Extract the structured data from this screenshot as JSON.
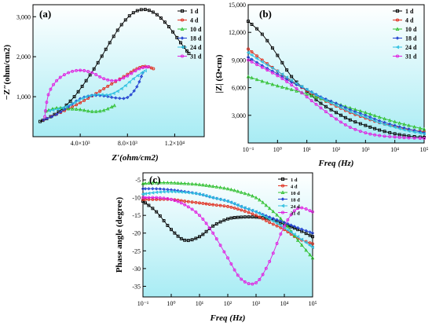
{
  "chart_data": [
    {
      "panel_label": "(a)",
      "type": "line",
      "xlabel": "Z′(ohm/cm2)",
      "ylabel": "−Z″(ohm/cm2)",
      "xlim": [
        0,
        14500
      ],
      "ylim": [
        0,
        3300
      ],
      "xticks": [
        {
          "v": 4000,
          "label": "4.0×10³"
        },
        {
          "v": 8000,
          "label": "8.0×10³"
        },
        {
          "v": 12000,
          "label": "1.2×10⁴"
        }
      ],
      "yticks": [
        {
          "v": 1000,
          "label": "1,000"
        },
        {
          "v": 2000,
          "label": "2,000"
        },
        {
          "v": 3000,
          "label": "3,000"
        }
      ],
      "legend": "top-right",
      "series": [
        {
          "name": "1 d",
          "color": "#000000",
          "marker": "square",
          "x": [
            600,
            1500,
            2500,
            3500,
            4500,
            5500,
            6500,
            7500,
            8500,
            9500,
            10500,
            11500,
            12500,
            13200
          ],
          "y": [
            380,
            500,
            700,
            1000,
            1400,
            1850,
            2350,
            2800,
            3100,
            3180,
            3050,
            2750,
            2350,
            2080
          ]
        },
        {
          "name": "4 d",
          "color": "#e03020",
          "marker": "circle",
          "x": [
            900,
            2000,
            3000,
            4000,
            5000,
            6000,
            7000,
            8000,
            8800,
            9500,
            10200
          ],
          "y": [
            420,
            560,
            700,
            850,
            1020,
            1200,
            1380,
            1560,
            1700,
            1760,
            1700
          ]
        },
        {
          "name": "10 d",
          "color": "#30c030",
          "marker": "triangle",
          "x": [
            1100,
            2000,
            3000,
            4000,
            5000,
            6000,
            6900
          ],
          "y": [
            640,
            720,
            700,
            680,
            630,
            660,
            780
          ]
        },
        {
          "name": "18 d",
          "color": "#2040d0",
          "marker": "diamond",
          "x": [
            900,
            2000,
            3000,
            4000,
            5000,
            6000,
            7000,
            8000,
            8800,
            9300
          ],
          "y": [
            420,
            560,
            750,
            950,
            1030,
            1020,
            970,
            980,
            1250,
            1600
          ]
        },
        {
          "name": "24 d",
          "color": "#30c0e0",
          "marker": "triangle-left",
          "x": [
            1400,
            2500,
            3500,
            4500,
            5500,
            6500,
            7500,
            8500,
            9500
          ],
          "y": [
            650,
            720,
            850,
            1000,
            1050,
            1050,
            1200,
            1450,
            1650
          ]
        },
        {
          "name": "31 d",
          "color": "#e020e0",
          "marker": "circle",
          "x": [
            1000,
            1300,
            2000,
            3000,
            4000,
            5000,
            6000,
            7000,
            8000,
            9000,
            9800
          ],
          "y": [
            500,
            1050,
            1400,
            1600,
            1660,
            1600,
            1450,
            1400,
            1520,
            1700,
            1750
          ]
        }
      ]
    },
    {
      "panel_label": "(b)",
      "type": "line",
      "xscale": "log",
      "xlabel": "Freq (Hz)",
      "ylabel": "|Z| (Ω•cm)",
      "xlim": [
        0.1,
        100000
      ],
      "ylim": [
        0,
        15000
      ],
      "xticks": [
        {
          "v": 0.1,
          "label": "10⁻¹"
        },
        {
          "v": 1,
          "label": "10⁰"
        },
        {
          "v": 10,
          "label": "10¹"
        },
        {
          "v": 100,
          "label": "10²"
        },
        {
          "v": 1000,
          "label": "10³"
        },
        {
          "v": 10000,
          "label": "10⁴"
        },
        {
          "v": 100000,
          "label": "10⁵"
        }
      ],
      "yticks": [
        {
          "v": 3000,
          "label": "3,000"
        },
        {
          "v": 6000,
          "label": "6,000"
        },
        {
          "v": 9000,
          "label": "9,000"
        },
        {
          "v": 12000,
          "label": "12,000"
        },
        {
          "v": 15000,
          "label": "15,000"
        }
      ],
      "legend": "top-right",
      "series": [
        {
          "name": "1 d",
          "color": "#000000",
          "marker": "square",
          "x": [
            0.1,
            0.3,
            1,
            3,
            10,
            30,
            100,
            300,
            1000,
            3000,
            10000,
            30000,
            100000
          ],
          "y": [
            13200,
            11800,
            9500,
            7200,
            5600,
            4300,
            3300,
            2500,
            1900,
            1400,
            1000,
            750,
            600
          ]
        },
        {
          "name": "4 d",
          "color": "#e03020",
          "marker": "circle",
          "x": [
            0.1,
            0.3,
            1,
            3,
            10,
            30,
            100,
            300,
            1000,
            3000,
            10000,
            30000,
            100000
          ],
          "y": [
            10200,
            9000,
            7800,
            6700,
            5700,
            4800,
            4000,
            3300,
            2700,
            2200,
            1800,
            1450,
            1200
          ]
        },
        {
          "name": "10 d",
          "color": "#30c030",
          "marker": "triangle",
          "x": [
            0.1,
            0.3,
            1,
            3,
            10,
            30,
            100,
            300,
            1000,
            3000,
            10000,
            30000,
            100000
          ],
          "y": [
            7200,
            6700,
            6200,
            5800,
            5300,
            4800,
            4300,
            3800,
            3300,
            2800,
            2300,
            1900,
            1500
          ]
        },
        {
          "name": "18 d",
          "color": "#2040d0",
          "marker": "diamond",
          "x": [
            0.1,
            0.3,
            1,
            3,
            10,
            30,
            100,
            300,
            1000,
            3000,
            10000,
            30000,
            100000
          ],
          "y": [
            9300,
            8400,
            7500,
            6600,
            5800,
            5000,
            4300,
            3600,
            3000,
            2400,
            1900,
            1500,
            1100
          ]
        },
        {
          "name": "24 d",
          "color": "#30c0e0",
          "marker": "triangle-left",
          "x": [
            0.1,
            0.3,
            1,
            3,
            10,
            30,
            100,
            300,
            1000,
            3000,
            10000,
            30000,
            100000
          ],
          "y": [
            9800,
            8800,
            7800,
            6800,
            5800,
            4900,
            4100,
            3400,
            2800,
            2200,
            1700,
            1300,
            1000
          ]
        },
        {
          "name": "31 d",
          "color": "#e020e0",
          "marker": "circle",
          "x": [
            0.1,
            0.3,
            1,
            3,
            10,
            30,
            100,
            300,
            1000,
            3000,
            10000,
            30000,
            100000
          ],
          "y": [
            9000,
            8200,
            7300,
            6300,
            5000,
            3800,
            2600,
            1700,
            1100,
            800,
            650,
            550,
            500
          ]
        }
      ]
    },
    {
      "panel_label": "(c)",
      "type": "line",
      "xscale": "log",
      "xlabel": "Freq (Hz)",
      "ylabel": "Phase angle (degree)",
      "xlim": [
        0.1,
        100000
      ],
      "ylim": [
        -38,
        -3
      ],
      "xticks": [
        {
          "v": 0.1,
          "label": "10⁻¹"
        },
        {
          "v": 1,
          "label": "10⁰"
        },
        {
          "v": 10,
          "label": "10¹"
        },
        {
          "v": 100,
          "label": "10²"
        },
        {
          "v": 1000,
          "label": "10³"
        },
        {
          "v": 10000,
          "label": "10⁴"
        },
        {
          "v": 100000,
          "label": "10⁵"
        }
      ],
      "yticks": [
        {
          "v": -5,
          "label": "-5"
        },
        {
          "v": -10,
          "label": "-10"
        },
        {
          "v": -15,
          "label": "-15"
        },
        {
          "v": -20,
          "label": "-20"
        },
        {
          "v": -25,
          "label": "-25"
        },
        {
          "v": -30,
          "label": "-30"
        },
        {
          "v": -35,
          "label": "-35"
        }
      ],
      "legend": "top-right",
      "series": [
        {
          "name": "1 d",
          "color": "#000000",
          "marker": "square",
          "x": [
            0.1,
            0.3,
            1,
            3,
            10,
            30,
            100,
            300,
            1000,
            3000,
            10000,
            30000,
            100000
          ],
          "y": [
            -11,
            -14,
            -19,
            -22,
            -21,
            -18,
            -16,
            -15.5,
            -15.5,
            -16,
            -17.5,
            -19,
            -21
          ]
        },
        {
          "name": "4 d",
          "color": "#e03020",
          "marker": "circle",
          "x": [
            0.1,
            0.3,
            1,
            3,
            10,
            30,
            100,
            300,
            1000,
            3000,
            10000,
            30000,
            100000
          ],
          "y": [
            -10.5,
            -10.5,
            -10.5,
            -11,
            -11.5,
            -12,
            -12.5,
            -13.5,
            -15,
            -17,
            -19,
            -21.5,
            -23
          ]
        },
        {
          "name": "10 d",
          "color": "#30c030",
          "marker": "triangle",
          "x": [
            0.1,
            0.3,
            1,
            3,
            10,
            30,
            100,
            300,
            1000,
            3000,
            10000,
            30000,
            100000
          ],
          "y": [
            -6,
            -5.8,
            -5.8,
            -6,
            -6.3,
            -6.8,
            -7.5,
            -8.5,
            -10,
            -13,
            -17,
            -22,
            -27
          ]
        },
        {
          "name": "18 d",
          "color": "#2040d0",
          "marker": "diamond",
          "x": [
            0.1,
            0.3,
            1,
            3,
            10,
            30,
            100,
            300,
            1000,
            3000,
            10000,
            30000,
            100000
          ],
          "y": [
            -7.5,
            -7.5,
            -7.8,
            -8.3,
            -9,
            -10,
            -11,
            -12.5,
            -14,
            -15.5,
            -17,
            -18.5,
            -20
          ]
        },
        {
          "name": "24 d",
          "color": "#30c0e0",
          "marker": "triangle-left",
          "x": [
            0.1,
            0.3,
            1,
            3,
            10,
            30,
            100,
            300,
            1000,
            3000,
            10000,
            30000,
            100000
          ],
          "y": [
            -9,
            -8.5,
            -8.3,
            -8.5,
            -9,
            -10,
            -11,
            -12.5,
            -14,
            -16,
            -18.5,
            -21,
            -24
          ]
        },
        {
          "name": "31 d",
          "color": "#e020e0",
          "marker": "circle",
          "x": [
            0.1,
            0.3,
            1,
            3,
            10,
            30,
            100,
            300,
            1000,
            3000,
            10000,
            30000,
            100000
          ],
          "y": [
            -10,
            -10,
            -10.5,
            -12,
            -15,
            -20,
            -27,
            -33,
            -34,
            -28,
            -18,
            -13,
            -14
          ]
        }
      ]
    }
  ]
}
